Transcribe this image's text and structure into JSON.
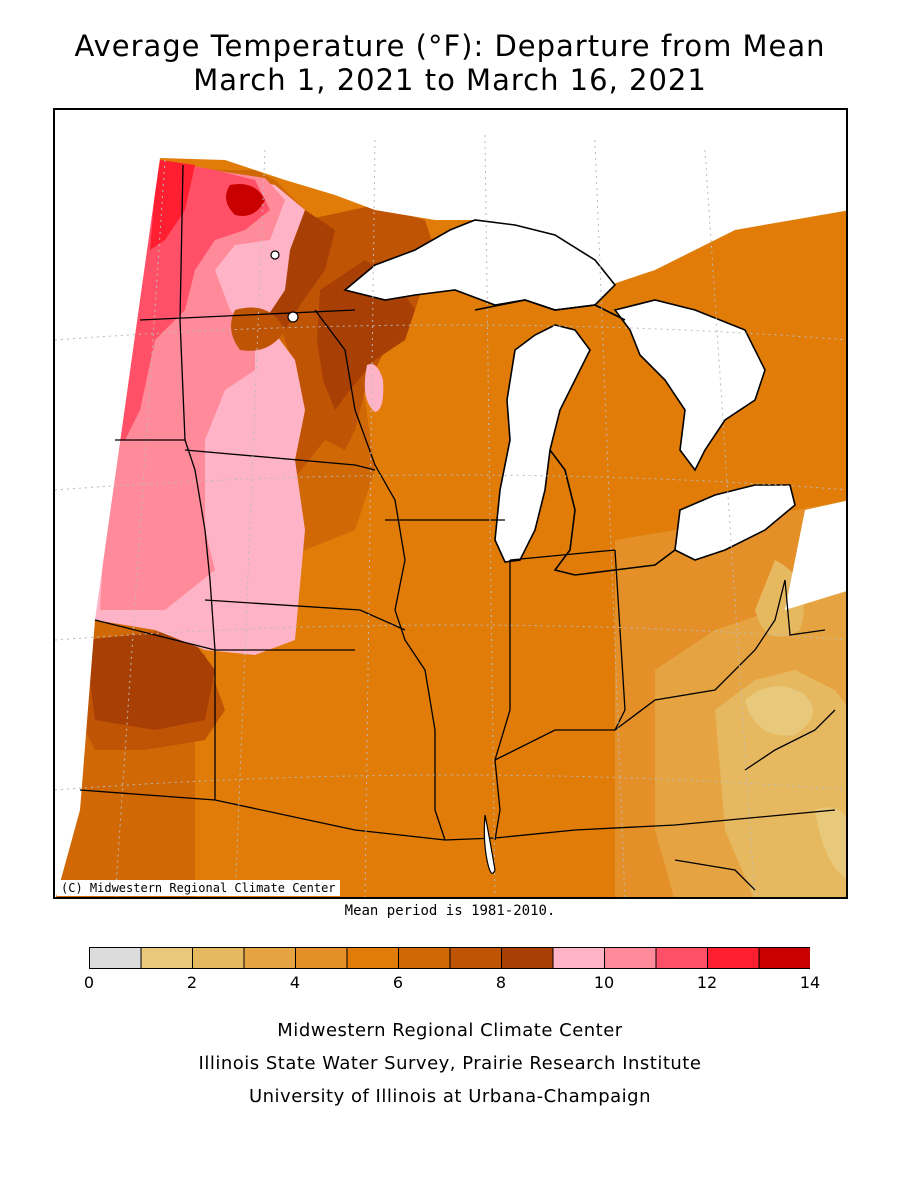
{
  "title": {
    "line1": "Average Temperature (°F): Departure from Mean",
    "line2": "March 1, 2021 to March 16, 2021"
  },
  "map": {
    "copyright": "(C) Midwestern Regional Climate Center",
    "mean_note": "Mean period is 1981-2010."
  },
  "legend": {
    "min": 0,
    "max": 14,
    "step": 1,
    "tick_labels": [
      "0",
      "2",
      "4",
      "6",
      "8",
      "10",
      "12",
      "14"
    ],
    "bins": [
      {
        "from": 0,
        "to": 1,
        "color": "#dcdcdc"
      },
      {
        "from": 1,
        "to": 2,
        "color": "#e8c87a"
      },
      {
        "from": 2,
        "to": 3,
        "color": "#e6b85f"
      },
      {
        "from": 3,
        "to": 4,
        "color": "#e5a441"
      },
      {
        "from": 4,
        "to": 5,
        "color": "#e48f28"
      },
      {
        "from": 5,
        "to": 6,
        "color": "#e07c07"
      },
      {
        "from": 6,
        "to": 7,
        "color": "#d06806"
      },
      {
        "from": 7,
        "to": 8,
        "color": "#c05405"
      },
      {
        "from": 8,
        "to": 9,
        "color": "#a83f04"
      },
      {
        "from": 9,
        "to": 10,
        "color": "#ffb3c6"
      },
      {
        "from": 10,
        "to": 11,
        "color": "#ff8a99"
      },
      {
        "from": 11,
        "to": 12,
        "color": "#ff5067"
      },
      {
        "from": 12,
        "to": 13,
        "color": "#ff1f30"
      },
      {
        "from": 13,
        "to": 14,
        "color": "#c80000"
      }
    ]
  },
  "credits": {
    "line1": "Midwestern Regional Climate Center",
    "line2": "Illinois State Water Survey, Prairie Research Institute",
    "line3": "University of Illinois at Urbana-Champaign"
  }
}
